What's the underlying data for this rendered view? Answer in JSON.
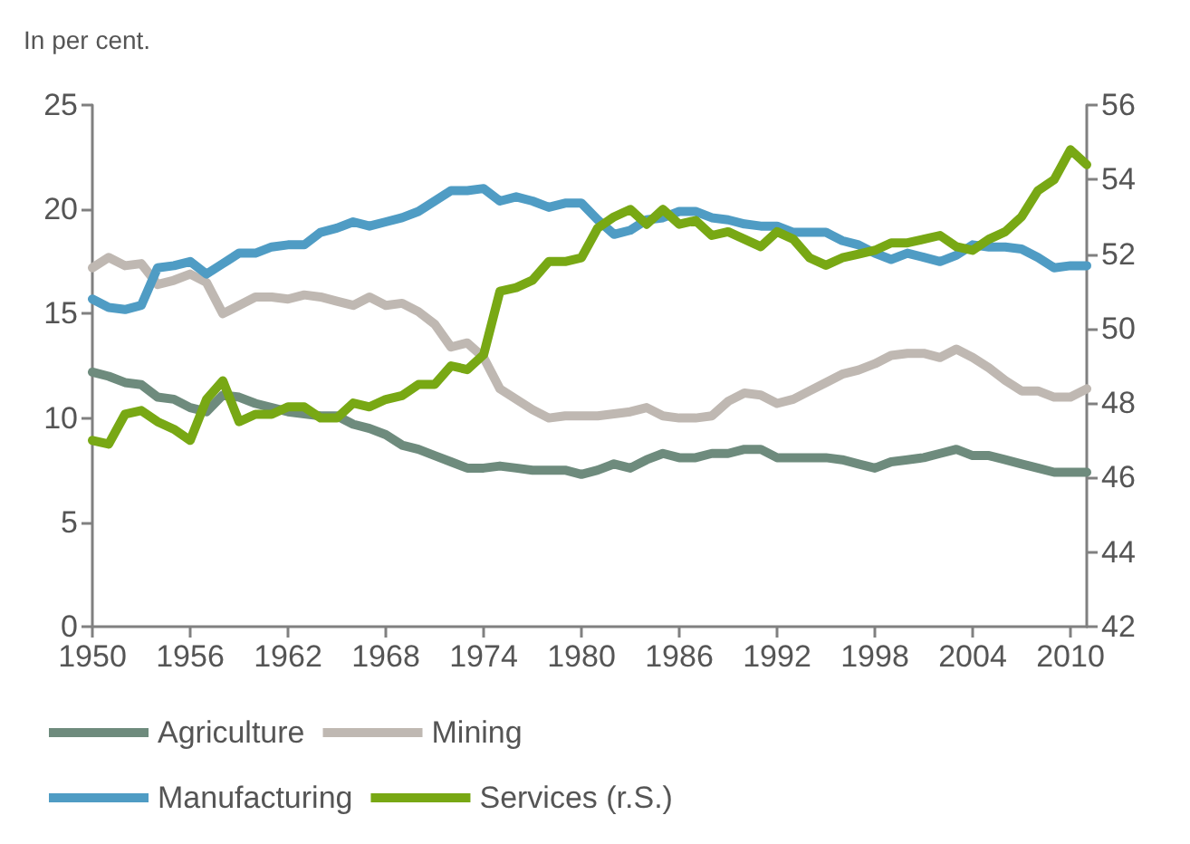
{
  "chart_data": {
    "type": "line",
    "title": "In per cent.",
    "x": [
      1950,
      1951,
      1952,
      1953,
      1954,
      1955,
      1956,
      1957,
      1958,
      1959,
      1960,
      1961,
      1962,
      1963,
      1964,
      1965,
      1966,
      1967,
      1968,
      1969,
      1970,
      1971,
      1972,
      1973,
      1974,
      1975,
      1976,
      1977,
      1978,
      1979,
      1980,
      1981,
      1982,
      1983,
      1984,
      1985,
      1986,
      1987,
      1988,
      1989,
      1990,
      1991,
      1992,
      1993,
      1994,
      1995,
      1996,
      1997,
      1998,
      1999,
      2000,
      2001,
      2002,
      2003,
      2004,
      2005,
      2006,
      2007,
      2008,
      2009,
      2010,
      2011
    ],
    "series": [
      {
        "name": "Agriculture",
        "color": "#6e8b7d",
        "values": [
          12.2,
          12.0,
          11.7,
          11.6,
          11.0,
          10.9,
          10.5,
          10.3,
          11.1,
          11.0,
          10.7,
          10.5,
          10.3,
          10.2,
          10.1,
          10.1,
          9.7,
          9.5,
          9.2,
          8.7,
          8.5,
          8.2,
          7.9,
          7.6,
          7.6,
          7.7,
          7.6,
          7.5,
          7.5,
          7.5,
          7.3,
          7.5,
          7.8,
          7.6,
          8.0,
          8.3,
          8.1,
          8.1,
          8.3,
          8.3,
          8.5,
          8.5,
          8.1,
          8.1,
          8.1,
          8.1,
          8.0,
          7.8,
          7.6,
          7.9,
          8.0,
          8.1,
          8.3,
          8.5,
          8.2,
          8.2,
          8.0,
          7.8,
          7.6,
          7.4,
          7.4,
          7.4
        ]
      },
      {
        "name": "Mining",
        "color": "#bfb8b2",
        "values": [
          17.2,
          17.7,
          17.3,
          17.4,
          16.4,
          16.6,
          16.9,
          16.5,
          15.0,
          15.4,
          15.8,
          15.8,
          15.7,
          15.9,
          15.8,
          15.6,
          15.4,
          15.8,
          15.4,
          15.5,
          15.1,
          14.5,
          13.4,
          13.6,
          12.9,
          11.4,
          10.9,
          10.4,
          10.0,
          10.1,
          10.1,
          10.1,
          10.2,
          10.3,
          10.5,
          10.1,
          10.0,
          10.0,
          10.1,
          10.8,
          11.2,
          11.1,
          10.7,
          10.9,
          11.3,
          11.7,
          12.1,
          12.3,
          12.6,
          13.0,
          13.1,
          13.1,
          12.9,
          13.3,
          12.9,
          12.4,
          11.8,
          11.3,
          11.3,
          11.0,
          11.0,
          11.4
        ]
      },
      {
        "name": "Manufacturing",
        "color": "#4f9cc4",
        "values": [
          15.7,
          15.3,
          15.2,
          15.4,
          17.2,
          17.3,
          17.5,
          16.9,
          17.4,
          17.9,
          17.9,
          18.2,
          18.3,
          18.3,
          18.9,
          19.1,
          19.4,
          19.2,
          19.4,
          19.6,
          19.9,
          20.4,
          20.9,
          20.9,
          21.0,
          20.4,
          20.6,
          20.4,
          20.1,
          20.3,
          20.3,
          19.5,
          18.8,
          19.0,
          19.5,
          19.6,
          19.9,
          19.9,
          19.6,
          19.5,
          19.3,
          19.2,
          19.2,
          18.9,
          18.9,
          18.9,
          18.5,
          18.3,
          17.9,
          17.6,
          17.9,
          17.7,
          17.5,
          17.8,
          18.3,
          18.2,
          18.2,
          18.1,
          17.7,
          17.2,
          17.3,
          17.3
        ]
      },
      {
        "name": "Services (r.S.)",
        "color": "#78a814",
        "axis": "y2",
        "values": [
          47.0,
          46.9,
          47.7,
          47.8,
          47.5,
          47.3,
          47.0,
          48.1,
          48.6,
          47.5,
          47.7,
          47.7,
          47.9,
          47.9,
          47.6,
          47.6,
          48.0,
          47.9,
          48.1,
          48.2,
          48.5,
          48.5,
          49.0,
          48.9,
          49.3,
          51.0,
          51.1,
          51.3,
          51.8,
          51.8,
          51.9,
          52.7,
          53.0,
          53.2,
          52.8,
          53.2,
          52.8,
          52.9,
          52.5,
          52.6,
          52.4,
          52.2,
          52.6,
          52.4,
          51.9,
          51.7,
          51.9,
          52.0,
          52.1,
          52.3,
          52.3,
          52.4,
          52.5,
          52.2,
          52.1,
          52.4,
          52.6,
          53.0,
          53.7,
          54.0,
          54.8,
          54.4
        ]
      }
    ],
    "xlim": [
      1950,
      2011
    ],
    "xticks": [
      1950,
      1956,
      1962,
      1968,
      1974,
      1980,
      1986,
      1992,
      1998,
      2004,
      2010
    ],
    "ylim": [
      0,
      25
    ],
    "yticks": [
      0,
      5,
      10,
      15,
      20,
      25
    ],
    "y2lim": [
      42,
      56
    ],
    "y2ticks": [
      42,
      44,
      46,
      48,
      50,
      52,
      54,
      56
    ],
    "grid": false,
    "legend": "bottom",
    "marker": "none",
    "line_style": "solid"
  }
}
